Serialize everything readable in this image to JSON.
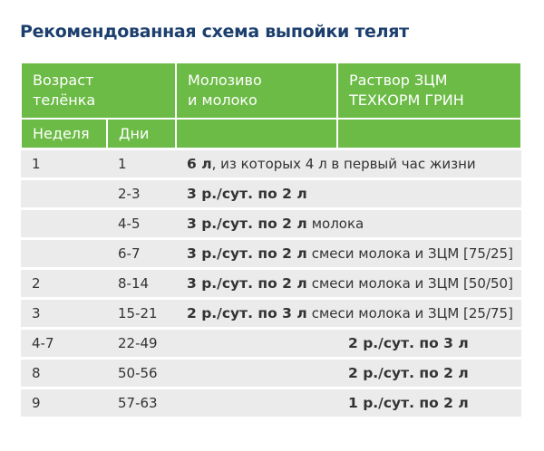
{
  "title": "Рекомендованная схема выпойки телят",
  "table": {
    "header": {
      "age": [
        "Возраст",
        "телёнка"
      ],
      "milk": [
        "Молозиво",
        "и молоко"
      ],
      "replacer": [
        "Раствор ЗЦМ",
        "ТЕХКОРМ ГРИН"
      ],
      "week": "Неделя",
      "days": "Дни"
    },
    "rows": [
      {
        "week": "1",
        "days": "1",
        "milk": {
          "bold": "6 л",
          "rest": ", из которых 4 л в первый час жизни"
        }
      },
      {
        "days": "2-3",
        "milk": {
          "bold": "3 р./сут. по 2 л"
        }
      },
      {
        "days": "4-5",
        "milk": {
          "bold": "3 р./сут. по 2 л",
          "rest": "молока"
        }
      },
      {
        "days": "6-7",
        "milk": {
          "bold": "3 р./сут. по 2 л",
          "rest": "смеси молока и ЗЦМ [75/25]"
        }
      },
      {
        "week": "2",
        "days": "8-14",
        "milk": {
          "bold": "3 р./сут. по 2 л",
          "rest": "смеси молока и ЗЦМ [50/50]"
        }
      },
      {
        "week": "3",
        "days": "15-21",
        "milk": {
          "bold": "2 р./сут. по 3 л",
          "rest": "смеси молока и ЗЦМ [25/75]"
        }
      },
      {
        "week": "4-7",
        "days": "22-49",
        "replacer": "2 р./сут. по 3 л"
      },
      {
        "week": "8",
        "days": "50-56",
        "replacer": "2 р./сут. по 2 л"
      },
      {
        "week": "9",
        "days": "57-63",
        "replacer": "1 р./сут. по 2 л"
      }
    ]
  }
}
